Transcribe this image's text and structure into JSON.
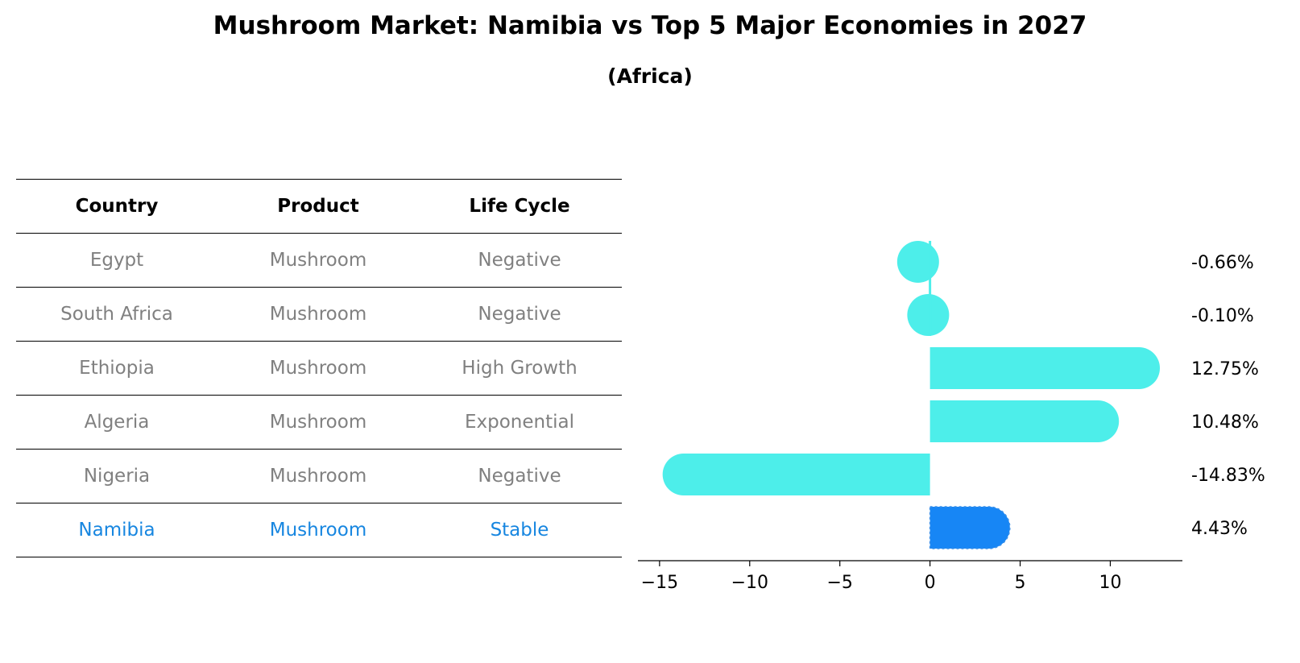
{
  "title": "Mushroom Market: Namibia vs Top 5 Major Economies in 2027",
  "subtitle": "(Africa)",
  "table": {
    "headers": [
      "Country",
      "Product",
      "Life Cycle"
    ],
    "rows": [
      [
        "Egypt",
        "Mushroom",
        "Negative"
      ],
      [
        "South Africa",
        "Mushroom",
        "Negative"
      ],
      [
        "Ethiopia",
        "Mushroom",
        "High Growth"
      ],
      [
        "Algeria",
        "Mushroom",
        "Exponential"
      ],
      [
        "Nigeria",
        "Mushroom",
        "Negative"
      ],
      [
        "Namibia",
        "Mushroom",
        "Stable"
      ]
    ]
  },
  "colors": {
    "bar": "#4deeea",
    "highlight_bar": "#1786f5",
    "highlight_text": "#1786e0",
    "muted_text": "#808080"
  },
  "chart_data": {
    "type": "bar",
    "orientation": "horizontal",
    "categories": [
      "Egypt",
      "South Africa",
      "Ethiopia",
      "Algeria",
      "Nigeria",
      "Namibia"
    ],
    "values": [
      -0.66,
      -0.1,
      12.75,
      10.48,
      -14.83,
      4.43
    ],
    "value_labels": [
      "-0.66%",
      "-0.10%",
      "12.75%",
      "10.48%",
      "-14.83%",
      "4.43%"
    ],
    "highlight": "Namibia",
    "xlim": [
      -16.2,
      14
    ],
    "xticks": [
      -15,
      -10,
      -5,
      0,
      5,
      10
    ],
    "xtick_labels": [
      "−15",
      "−10",
      "−5",
      "0",
      "5",
      "10"
    ],
    "xlabel": "",
    "ylabel": "",
    "grid": false
  }
}
